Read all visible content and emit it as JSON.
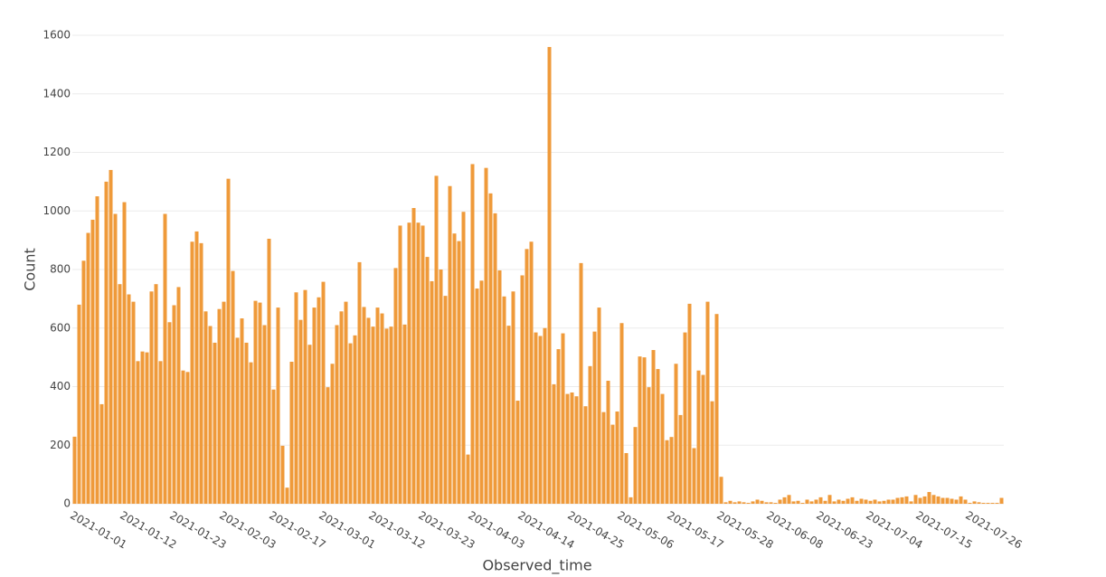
{
  "chart_data": {
    "type": "bar",
    "x_label": "Observed_time",
    "y_label": "Count",
    "color": "#ef9a3a",
    "grid": true,
    "ylim": [
      0,
      1600
    ],
    "yticks": [
      0,
      200,
      400,
      600,
      800,
      1000,
      1200,
      1400,
      1600
    ],
    "categories": [
      "2021-01-01",
      null,
      null,
      null,
      null,
      null,
      null,
      null,
      null,
      null,
      null,
      "2021-01-12",
      null,
      null,
      null,
      null,
      null,
      null,
      null,
      null,
      null,
      null,
      "2021-01-23",
      null,
      null,
      null,
      null,
      null,
      null,
      null,
      null,
      null,
      null,
      "2021-02-03",
      null,
      null,
      null,
      null,
      null,
      null,
      null,
      null,
      null,
      null,
      "2021-02-17",
      null,
      null,
      null,
      null,
      null,
      null,
      null,
      null,
      null,
      null,
      "2021-03-01",
      null,
      null,
      null,
      null,
      null,
      null,
      null,
      null,
      null,
      null,
      "2021-03-12",
      null,
      null,
      null,
      null,
      null,
      null,
      null,
      null,
      null,
      null,
      "2021-03-23",
      null,
      null,
      null,
      null,
      null,
      null,
      null,
      null,
      null,
      null,
      "2021-04-03",
      null,
      null,
      null,
      null,
      null,
      null,
      null,
      null,
      null,
      null,
      "2021-04-14",
      null,
      null,
      null,
      null,
      null,
      null,
      null,
      null,
      null,
      null,
      "2021-04-25",
      null,
      null,
      null,
      null,
      null,
      null,
      null,
      null,
      null,
      null,
      "2021-05-06",
      null,
      null,
      null,
      null,
      null,
      null,
      null,
      null,
      null,
      null,
      "2021-05-17",
      null,
      null,
      null,
      null,
      null,
      null,
      null,
      null,
      null,
      null,
      "2021-05-28",
      null,
      null,
      null,
      null,
      null,
      null,
      null,
      null,
      null,
      null,
      "2021-06-08",
      null,
      null,
      null,
      null,
      null,
      null,
      null,
      null,
      null,
      null,
      "2021-06-23",
      null,
      null,
      null,
      null,
      null,
      null,
      null,
      null,
      null,
      null,
      "2021-07-04",
      null,
      null,
      null,
      null,
      null,
      null,
      null,
      null,
      null,
      null,
      "2021-07-15",
      null,
      null,
      null,
      null,
      null,
      null,
      null,
      null,
      null,
      null,
      "2021-07-26",
      null,
      null,
      null,
      null,
      null,
      null,
      null
    ],
    "values": [
      229,
      680,
      830,
      925,
      970,
      1050,
      340,
      1100,
      1140,
      990,
      750,
      1030,
      715,
      690,
      487,
      520,
      517,
      725,
      750,
      487,
      990,
      620,
      678,
      740,
      455,
      450,
      895,
      930,
      890,
      657,
      607,
      550,
      665,
      690,
      1110,
      795,
      567,
      633,
      550,
      483,
      693,
      687,
      610,
      905,
      390,
      670,
      198,
      55,
      485,
      722,
      628,
      730,
      543,
      670,
      705,
      758,
      398,
      478,
      610,
      657,
      690,
      548,
      575,
      825,
      672,
      635,
      605,
      670,
      650,
      598,
      605,
      805,
      950,
      612,
      960,
      1010,
      960,
      950,
      843,
      760,
      1120,
      800,
      710,
      1085,
      923,
      897,
      997,
      168,
      1160,
      735,
      762,
      1147,
      1060,
      992,
      797,
      708,
      608,
      725,
      352,
      780,
      870,
      895,
      585,
      573,
      600,
      1560,
      408,
      528,
      582,
      375,
      380,
      367,
      822,
      333,
      470,
      588,
      670,
      313,
      420,
      270,
      315,
      617,
      173,
      22,
      262,
      503,
      500,
      398,
      525,
      460,
      375,
      217,
      228,
      478,
      303,
      585,
      683,
      190,
      455,
      440,
      690,
      350,
      648,
      92,
      5,
      10,
      5,
      8,
      5,
      3,
      8,
      14,
      10,
      5,
      5,
      3,
      14,
      22,
      30,
      8,
      10,
      3,
      14,
      8,
      14,
      22,
      10,
      30,
      8,
      14,
      10,
      17,
      22,
      10,
      17,
      14,
      10,
      14,
      8,
      10,
      14,
      14,
      20,
      22,
      25,
      8,
      30,
      20,
      25,
      40,
      30,
      25,
      20,
      20,
      17,
      14,
      25,
      14,
      3,
      8,
      5,
      3,
      3,
      3,
      3,
      20
    ]
  }
}
